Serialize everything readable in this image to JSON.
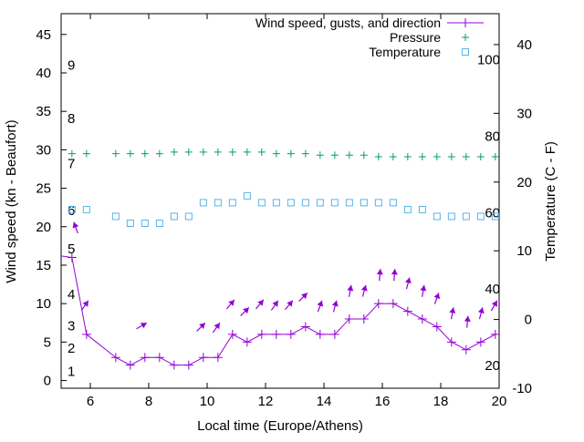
{
  "chart_data": {
    "type": "line",
    "xlabel": "Local time (Europe/Athens)",
    "ylabel": "Wind speed (kn - Beaufort)",
    "y2label": "Temperature (C - F)",
    "xlim": [
      5,
      20
    ],
    "ylim": [
      -1,
      47.7
    ],
    "y2lim": [
      -10,
      44.5
    ],
    "xticks": [
      6,
      8,
      10,
      12,
      14,
      16,
      18,
      20
    ],
    "yticks": [
      0,
      5,
      10,
      15,
      20,
      25,
      30,
      35,
      40,
      45
    ],
    "y2ticks": [
      -10,
      0,
      10,
      20,
      30,
      40
    ],
    "beaufort_labels": [
      {
        "label": "1",
        "kn": 1.2
      },
      {
        "label": "2",
        "kn": 4.2
      },
      {
        "label": "3",
        "kn": 7.1
      },
      {
        "label": "4",
        "kn": 11.2
      },
      {
        "label": "5",
        "kn": 17.1
      },
      {
        "label": "6",
        "kn": 22.1
      },
      {
        "label": "7",
        "kn": 28.2
      },
      {
        "label": "8",
        "kn": 34.1
      },
      {
        "label": "9",
        "kn": 41
      }
    ],
    "fahrenheit_labels": [
      {
        "label": "20",
        "f": 20
      },
      {
        "label": "40",
        "f": 40
      },
      {
        "label": "60",
        "f": 60
      },
      {
        "label": "80",
        "f": 80
      },
      {
        "label": "100",
        "f": 100
      }
    ],
    "x": [
      5.37,
      5.87,
      6.87,
      7.37,
      7.87,
      8.37,
      8.87,
      9.37,
      9.87,
      10.37,
      10.87,
      11.37,
      11.87,
      12.37,
      12.87,
      13.37,
      13.87,
      14.37,
      14.87,
      15.37,
      15.87,
      16.37,
      16.87,
      17.37,
      17.87,
      18.37,
      18.87,
      19.37,
      19.87
    ],
    "series": [
      {
        "name": "Wind speed, gusts, and direction",
        "axis": "left",
        "color": "#9400d3",
        "values": [
          16,
          6,
          3,
          2,
          3,
          3,
          2,
          2,
          3,
          3,
          6,
          5,
          6,
          6,
          6,
          7,
          6,
          6,
          8,
          8,
          10,
          10,
          9,
          8,
          7,
          5,
          4,
          5,
          6
        ],
        "gusts": [
          20.6,
          10.4,
          null,
          null,
          7.5,
          null,
          null,
          null,
          7.5,
          7.5,
          10.5,
          9.5,
          10.5,
          10.4,
          10.4,
          11.4,
          10.4,
          10.4,
          12.4,
          12.4,
          14.5,
          14.5,
          13.4,
          12.4,
          11.4,
          9.5,
          8.4,
          9.5,
          10.4
        ],
        "direction_deg": [
          340,
          35,
          null,
          null,
          60,
          null,
          null,
          null,
          45,
          35,
          40,
          45,
          40,
          35,
          40,
          45,
          20,
          15,
          10,
          15,
          5,
          5,
          15,
          10,
          20,
          10,
          5,
          15,
          30
        ]
      },
      {
        "name": "Pressure",
        "axis": "left",
        "color": "#009e73",
        "values": [
          29.5,
          29.5,
          29.5,
          29.5,
          29.5,
          29.5,
          29.7,
          29.7,
          29.7,
          29.7,
          29.7,
          29.7,
          29.7,
          29.5,
          29.5,
          29.5,
          29.3,
          29.3,
          29.3,
          29.3,
          29.1,
          29.1,
          29.1,
          29.1,
          29.1,
          29.1,
          29.1,
          29.1,
          29.1
        ]
      },
      {
        "name": "Temperature",
        "axis": "right",
        "color": "#56b4e9",
        "values": [
          16,
          16,
          15,
          14,
          14,
          14,
          15,
          15,
          17,
          17,
          17,
          18,
          17,
          17,
          17,
          17,
          17,
          17,
          17,
          17,
          17,
          17,
          16,
          16,
          15,
          15,
          15,
          15,
          15
        ]
      }
    ],
    "legend_position": "top-right"
  }
}
